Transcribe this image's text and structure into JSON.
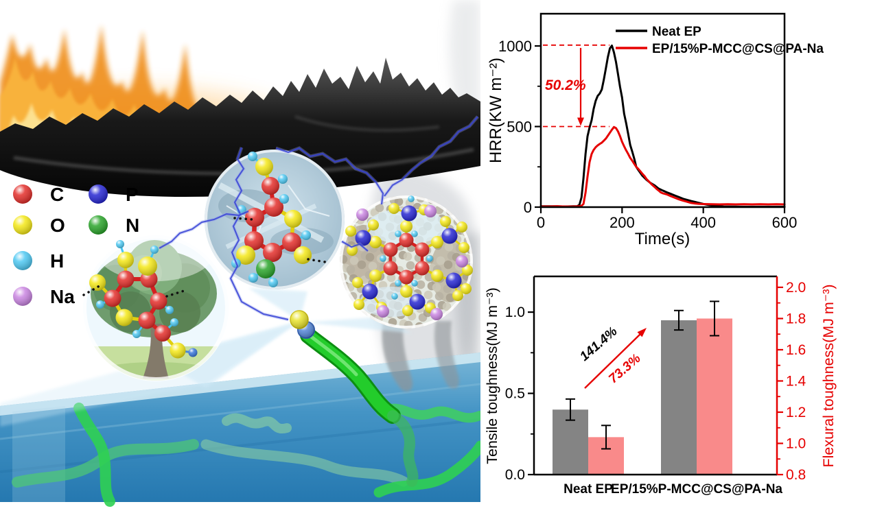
{
  "figure": {
    "kind": "graphical-abstract",
    "background": "#ffffff",
    "accent_red": "#e60000"
  },
  "illustration": {
    "atom_legend": {
      "items": [
        {
          "symbol": "C",
          "color": "#e2231f"
        },
        {
          "symbol": "P",
          "color": "#1b1bd0"
        },
        {
          "symbol": "O",
          "color": "#f4e70b"
        },
        {
          "symbol": "N",
          "color": "#1fa01f"
        },
        {
          "symbol": "H",
          "color": "#45c6f2"
        },
        {
          "symbol": "Na",
          "color": "#c77fe0"
        }
      ]
    },
    "scene_elements": [
      "flames",
      "burnt-char-surface",
      "smoke-plumes",
      "cellulose-tree-inset",
      "char-layer-inset",
      "phytate-sodium-network-inset",
      "lightning-bonds",
      "water-with-polymer-chains",
      "epoxy-chain-tube"
    ]
  },
  "chart_data": [
    {
      "type": "line",
      "title": "",
      "xlabel": "Time(s)",
      "ylabel": "HRR(KW m⁻²)",
      "xlim": [
        0,
        600
      ],
      "ylim": [
        0,
        1200
      ],
      "xticks": [
        0,
        200,
        400,
        600
      ],
      "yticks": [
        0,
        500,
        1000
      ],
      "yminorticks": [
        250,
        750
      ],
      "grid": false,
      "legend_position": "top-center-inside",
      "annotation": {
        "label": "50.2%",
        "color": "#e60000",
        "from_y": 1005,
        "to_y": 500
      },
      "series": [
        {
          "name": "Neat EP",
          "color": "#000000",
          "points": [
            [
              0,
              5
            ],
            [
              20,
              5
            ],
            [
              40,
              5
            ],
            [
              60,
              4
            ],
            [
              80,
              5
            ],
            [
              90,
              6
            ],
            [
              95,
              15
            ],
            [
              100,
              60
            ],
            [
              105,
              180
            ],
            [
              110,
              330
            ],
            [
              115,
              440
            ],
            [
              120,
              495
            ],
            [
              125,
              540
            ],
            [
              130,
              610
            ],
            [
              135,
              660
            ],
            [
              140,
              690
            ],
            [
              145,
              705
            ],
            [
              150,
              730
            ],
            [
              155,
              790
            ],
            [
              160,
              860
            ],
            [
              165,
              930
            ],
            [
              170,
              985
            ],
            [
              175,
              1002
            ],
            [
              180,
              960
            ],
            [
              185,
              900
            ],
            [
              190,
              825
            ],
            [
              195,
              745
            ],
            [
              200,
              680
            ],
            [
              205,
              580
            ],
            [
              210,
              520
            ],
            [
              215,
              455
            ],
            [
              220,
              385
            ],
            [
              225,
              345
            ],
            [
              230,
              300
            ],
            [
              235,
              250
            ],
            [
              240,
              230
            ],
            [
              250,
              195
            ],
            [
              260,
              170
            ],
            [
              270,
              150
            ],
            [
              280,
              135
            ],
            [
              290,
              115
            ],
            [
              300,
              103
            ],
            [
              310,
              92
            ],
            [
              320,
              82
            ],
            [
              330,
              72
            ],
            [
              340,
              62
            ],
            [
              350,
              52
            ],
            [
              360,
              45
            ],
            [
              370,
              38
            ],
            [
              380,
              32
            ],
            [
              390,
              26
            ],
            [
              400,
              20
            ],
            [
              410,
              15
            ],
            [
              420,
              11
            ],
            [
              430,
              8
            ],
            [
              440,
              5
            ],
            [
              450,
              4
            ],
            [
              470,
              3
            ],
            [
              500,
              2
            ],
            [
              550,
              2
            ],
            [
              600,
              2
            ]
          ]
        },
        {
          "name": "EP/15%P-MCC@CS@PA-Na",
          "color": "#e60000",
          "points": [
            [
              0,
              4
            ],
            [
              20,
              4
            ],
            [
              40,
              5
            ],
            [
              60,
              4
            ],
            [
              80,
              4
            ],
            [
              95,
              5
            ],
            [
              100,
              8
            ],
            [
              105,
              20
            ],
            [
              110,
              90
            ],
            [
              115,
              190
            ],
            [
              120,
              280
            ],
            [
              125,
              330
            ],
            [
              130,
              355
            ],
            [
              135,
              372
            ],
            [
              140,
              383
            ],
            [
              145,
              392
            ],
            [
              150,
              400
            ],
            [
              155,
              412
            ],
            [
              160,
              425
            ],
            [
              165,
              443
            ],
            [
              170,
              462
            ],
            [
              175,
              480
            ],
            [
              180,
              497
            ],
            [
              185,
              490
            ],
            [
              190,
              470
            ],
            [
              195,
              440
            ],
            [
              200,
              405
            ],
            [
              205,
              378
            ],
            [
              210,
              352
            ],
            [
              215,
              330
            ],
            [
              220,
              305
            ],
            [
              225,
              288
            ],
            [
              230,
              268
            ],
            [
              235,
              250
            ],
            [
              240,
              237
            ],
            [
              245,
              222
            ],
            [
              250,
              207
            ],
            [
              255,
              193
            ],
            [
              260,
              175
            ],
            [
              265,
              162
            ],
            [
              270,
              148
            ],
            [
              275,
              136
            ],
            [
              280,
              125
            ],
            [
              285,
              113
            ],
            [
              290,
              103
            ],
            [
              295,
              92
            ],
            [
              300,
              86
            ],
            [
              310,
              79
            ],
            [
              320,
              68
            ],
            [
              330,
              58
            ],
            [
              340,
              48
            ],
            [
              350,
              40
            ],
            [
              360,
              33
            ],
            [
              370,
              26
            ],
            [
              380,
              22
            ],
            [
              390,
              20
            ],
            [
              400,
              19
            ],
            [
              420,
              18
            ],
            [
              440,
              17
            ],
            [
              460,
              18
            ],
            [
              480,
              17
            ],
            [
              500,
              18
            ],
            [
              520,
              17
            ],
            [
              540,
              18
            ],
            [
              560,
              17
            ],
            [
              580,
              18
            ],
            [
              600,
              17
            ]
          ]
        }
      ]
    },
    {
      "type": "bar",
      "categories": [
        "Neat EP",
        "EP/15%P-MCC@CS@PA-Na"
      ],
      "left_axis": {
        "label": "Tensile toughness(MJ m⁻³)",
        "color": "#000000",
        "lim": [
          0,
          1.22
        ],
        "ticks": [
          0,
          0.5,
          1.0
        ],
        "minorticks": [
          0.25,
          0.75
        ]
      },
      "right_axis": {
        "label": "Flexural toughness(MJ m⁻³)",
        "color": "#e60000",
        "lim": [
          0.8,
          2.07
        ],
        "ticks": [
          0.8,
          1.0,
          1.2,
          1.4,
          1.6,
          1.8,
          2.0
        ],
        "minorticks": [
          0.9,
          1.1,
          1.3,
          1.5,
          1.7,
          1.9
        ]
      },
      "series": [
        {
          "name": "Tensile toughness",
          "axis": "left",
          "color": "#848484",
          "values": [
            0.4,
            0.95
          ],
          "errors": [
            0.065,
            0.06
          ]
        },
        {
          "name": "Flexural toughness",
          "axis": "right",
          "color": "#f98a8a",
          "values": [
            1.04,
            1.8
          ],
          "errors": [
            0.075,
            0.11
          ]
        }
      ],
      "annotations": [
        {
          "label": "141.4%",
          "color": "#000000"
        },
        {
          "label": "73.3%",
          "color": "#e60000"
        }
      ],
      "arrow_color": "#e60000",
      "grid": false
    }
  ]
}
